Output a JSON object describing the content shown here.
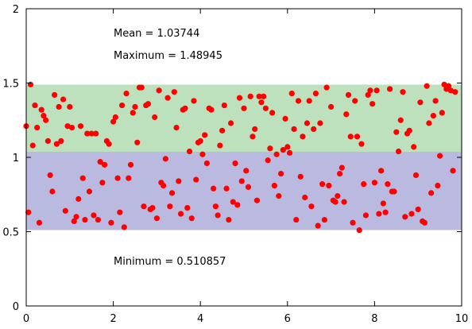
{
  "chart_data": {
    "type": "scatter",
    "title": "",
    "xlabel": "",
    "ylabel": "",
    "xlim": [
      0,
      10
    ],
    "ylim": [
      0,
      2
    ],
    "grid": false,
    "x_ticks": [
      "0",
      "2",
      "4",
      "6",
      "8",
      "10"
    ],
    "y_ticks": [
      "0",
      "0.5",
      "1",
      "1.5",
      "2"
    ],
    "annotations": {
      "mean": "Mean = 1.03744",
      "maximum": "Maximum = 1.48945",
      "minimum": "Minimum = 0.510857"
    },
    "stats": {
      "mean": 1.03744,
      "maximum": 1.48945,
      "minimum": 0.510857
    },
    "bands": [
      {
        "y_from": 0.510857,
        "y_to": 1.03744,
        "color": "#babae0"
      },
      {
        "y_from": 1.03744,
        "y_to": 1.48945,
        "color": "#bde0bd"
      }
    ],
    "series": [
      {
        "color": "#ff0000",
        "points": [
          [
            0.0,
            1.21
          ],
          [
            0.05,
            0.63
          ],
          [
            0.1,
            1.49
          ],
          [
            0.15,
            1.08
          ],
          [
            0.2,
            1.35
          ],
          [
            0.25,
            1.2
          ],
          [
            0.3,
            0.56
          ],
          [
            0.35,
            1.32
          ],
          [
            0.4,
            1.28
          ],
          [
            0.45,
            1.25
          ],
          [
            0.5,
            1.11
          ],
          [
            0.55,
            0.88
          ],
          [
            0.6,
            0.77
          ],
          [
            0.65,
            1.42
          ],
          [
            0.7,
            1.09
          ],
          [
            0.75,
            1.34
          ],
          [
            0.8,
            1.11
          ],
          [
            0.85,
            1.39
          ],
          [
            0.9,
            0.64
          ],
          [
            0.95,
            1.21
          ],
          [
            1.0,
            1.34
          ],
          [
            1.05,
            1.2
          ],
          [
            1.1,
            0.57
          ],
          [
            1.15,
            0.6
          ],
          [
            1.2,
            0.72
          ],
          [
            1.25,
            1.21
          ],
          [
            1.3,
            0.86
          ],
          [
            1.35,
            0.58
          ],
          [
            1.4,
            1.16
          ],
          [
            1.45,
            0.77
          ],
          [
            1.5,
            1.16
          ],
          [
            1.55,
            0.61
          ],
          [
            1.6,
            1.16
          ],
          [
            1.65,
            0.58
          ],
          [
            1.7,
            0.97
          ],
          [
            1.75,
            0.83
          ],
          [
            1.8,
            0.95
          ],
          [
            1.85,
            1.11
          ],
          [
            1.9,
            1.09
          ],
          [
            1.95,
            0.56
          ],
          [
            2.0,
            1.24
          ],
          [
            2.05,
            1.27
          ],
          [
            2.1,
            0.86
          ],
          [
            2.15,
            0.63
          ],
          [
            2.2,
            1.35
          ],
          [
            2.25,
            0.53
          ],
          [
            2.3,
            1.43
          ],
          [
            2.35,
            0.86
          ],
          [
            2.4,
            0.95
          ],
          [
            2.45,
            1.3
          ],
          [
            2.5,
            1.34
          ],
          [
            2.55,
            1.1
          ],
          [
            2.6,
            1.47
          ],
          [
            2.65,
            1.47
          ],
          [
            2.7,
            0.67
          ],
          [
            2.75,
            1.35
          ],
          [
            2.8,
            1.36
          ],
          [
            2.85,
            0.65
          ],
          [
            2.9,
            0.66
          ],
          [
            2.95,
            1.27
          ],
          [
            3.0,
            0.59
          ],
          [
            3.05,
            1.45
          ],
          [
            3.1,
            0.83
          ],
          [
            3.15,
            0.81
          ],
          [
            3.2,
            0.99
          ],
          [
            3.25,
            1.4
          ],
          [
            3.3,
            0.67
          ],
          [
            3.35,
            0.76
          ],
          [
            3.4,
            1.44
          ],
          [
            3.45,
            1.2
          ],
          [
            3.5,
            0.84
          ],
          [
            3.55,
            0.62
          ],
          [
            3.6,
            1.32
          ],
          [
            3.65,
            1.33
          ],
          [
            3.7,
            0.66
          ],
          [
            3.75,
            1.04
          ],
          [
            3.8,
            0.59
          ],
          [
            3.85,
            1.38
          ],
          [
            3.9,
            0.85
          ],
          [
            3.95,
            1.1
          ],
          [
            4.0,
            1.11
          ],
          [
            4.05,
            1.02
          ],
          [
            4.1,
            1.15
          ],
          [
            4.15,
            0.96
          ],
          [
            4.2,
            1.33
          ],
          [
            4.25,
            1.32
          ],
          [
            4.3,
            0.79
          ],
          [
            4.35,
            0.67
          ],
          [
            4.4,
            0.61
          ],
          [
            4.45,
            1.08
          ],
          [
            4.5,
            1.18
          ],
          [
            4.55,
            1.35
          ],
          [
            4.6,
            0.79
          ],
          [
            4.65,
            0.58
          ],
          [
            4.7,
            1.23
          ],
          [
            4.75,
            0.7
          ],
          [
            4.8,
            0.96
          ],
          [
            4.85,
            0.68
          ],
          [
            4.9,
            1.4
          ],
          [
            4.95,
            0.84
          ],
          [
            5.0,
            1.33
          ],
          [
            5.05,
            0.91
          ],
          [
            5.1,
            0.8
          ],
          [
            5.15,
            1.41
          ],
          [
            5.2,
            1.14
          ],
          [
            5.25,
            1.19
          ],
          [
            5.3,
            0.71
          ],
          [
            5.35,
            1.41
          ],
          [
            5.4,
            1.37
          ],
          [
            5.45,
            1.41
          ],
          [
            5.5,
            1.33
          ],
          [
            5.55,
            0.98
          ],
          [
            5.6,
            1.06
          ],
          [
            5.65,
            1.3
          ],
          [
            5.7,
            0.81
          ],
          [
            5.75,
            1.02
          ],
          [
            5.8,
            0.74
          ],
          [
            5.85,
            0.89
          ],
          [
            5.9,
            1.05
          ],
          [
            5.95,
            1.26
          ],
          [
            6.0,
            1.07
          ],
          [
            6.05,
            1.03
          ],
          [
            6.1,
            1.43
          ],
          [
            6.15,
            1.19
          ],
          [
            6.2,
            0.58
          ],
          [
            6.25,
            1.38
          ],
          [
            6.3,
            0.87
          ],
          [
            6.35,
            1.14
          ],
          [
            6.4,
            0.73
          ],
          [
            6.45,
            1.23
          ],
          [
            6.5,
            1.38
          ],
          [
            6.55,
            0.67
          ],
          [
            6.6,
            1.19
          ],
          [
            6.65,
            1.43
          ],
          [
            6.7,
            0.54
          ],
          [
            6.75,
            1.23
          ],
          [
            6.8,
            0.82
          ],
          [
            6.85,
            0.58
          ],
          [
            6.9,
            1.47
          ],
          [
            6.95,
            0.81
          ],
          [
            7.0,
            1.34
          ],
          [
            7.05,
            0.71
          ],
          [
            7.1,
            0.7
          ],
          [
            7.15,
            0.74
          ],
          [
            7.2,
            0.89
          ],
          [
            7.25,
            0.93
          ],
          [
            7.3,
            0.7
          ],
          [
            7.35,
            1.29
          ],
          [
            7.4,
            1.42
          ],
          [
            7.45,
            1.14
          ],
          [
            7.5,
            0.56
          ],
          [
            7.55,
            1.38
          ],
          [
            7.6,
            1.14
          ],
          [
            7.65,
            0.51
          ],
          [
            7.7,
            1.09
          ],
          [
            7.75,
            0.82
          ],
          [
            7.8,
            0.61
          ],
          [
            7.85,
            1.42
          ],
          [
            7.9,
            1.45
          ],
          [
            7.95,
            1.36
          ],
          [
            8.0,
            0.83
          ],
          [
            8.05,
            1.45
          ],
          [
            8.1,
            0.62
          ],
          [
            8.15,
            0.91
          ],
          [
            8.2,
            0.69
          ],
          [
            8.25,
            0.63
          ],
          [
            8.3,
            0.82
          ],
          [
            8.35,
            1.46
          ],
          [
            8.4,
            0.77
          ],
          [
            8.45,
            0.77
          ],
          [
            8.5,
            1.17
          ],
          [
            8.55,
            1.04
          ],
          [
            8.6,
            1.25
          ],
          [
            8.65,
            1.44
          ],
          [
            8.7,
            0.6
          ],
          [
            8.75,
            1.16
          ],
          [
            8.8,
            1.18
          ],
          [
            8.85,
            0.62
          ],
          [
            8.9,
            1.07
          ],
          [
            8.95,
            0.88
          ],
          [
            9.0,
            0.65
          ],
          [
            9.05,
            1.37
          ],
          [
            9.1,
            0.57
          ],
          [
            9.15,
            0.56
          ],
          [
            9.2,
            1.48
          ],
          [
            9.25,
            1.23
          ],
          [
            9.3,
            0.76
          ],
          [
            9.35,
            1.28
          ],
          [
            9.4,
            1.38
          ],
          [
            9.45,
            0.81
          ],
          [
            9.5,
            1.01
          ],
          [
            9.55,
            1.3
          ],
          [
            9.6,
            1.49
          ],
          [
            9.65,
            1.46
          ],
          [
            9.7,
            1.48
          ],
          [
            9.75,
            1.45
          ],
          [
            9.8,
            0.91
          ],
          [
            9.85,
            1.44
          ]
        ]
      }
    ]
  }
}
